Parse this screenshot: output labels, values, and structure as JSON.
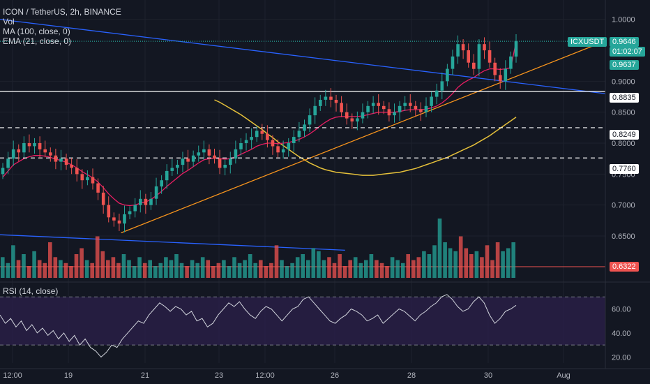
{
  "legend": {
    "symbol": "ICON / TetherUS, 2h, BINANCE",
    "vol": "Vol",
    "ma": "MA (100, close, 0)",
    "ema": "EMA (21, close, 0)",
    "rsi": "RSI (14, close)"
  },
  "tags": {
    "symbol": "ICXUSDT",
    "price": "0.9646",
    "countdown": "01:02:07",
    "ema_value": "0.9637",
    "level_top": "0.8835",
    "level_mid": "0.8249",
    "level_low": "0.7760",
    "volume_level": "0.6322"
  },
  "colors": {
    "background": "#131722",
    "up": "#26a69a",
    "down": "#ef5350",
    "ma": "#e5c03a",
    "ema": "#e91e63",
    "trend_support": "#f7941d",
    "trend_resistance": "#2962ff",
    "rsi_line": "#d1d4dc",
    "rsi_band": "#2a1f48",
    "price_tag": "#26a69a",
    "ema_tag": "#26a69a",
    "volume_tag": "#ef5350"
  },
  "chart_data": {
    "type": "candlestick",
    "price_axis": {
      "ticks": [
        "1.0000",
        "0.9000",
        "0.8500",
        "0.8000",
        "0.7500",
        "0.7000",
        "0.6500"
      ],
      "range": [
        0.58,
        1.02
      ]
    },
    "time_axis": {
      "ticks": [
        "12:00",
        "19",
        "21",
        "23",
        "12:00",
        "26",
        "28",
        "30",
        "Aug"
      ]
    },
    "rsi_axis": {
      "ticks": [
        "60.00",
        "40.00",
        "20.00"
      ],
      "range": [
        15,
        80
      ],
      "upper_band": 70,
      "lower_band": 30
    },
    "horizontal_levels": [
      {
        "value": 0.8835,
        "style": "solid"
      },
      {
        "value": 0.8249,
        "style": "dashed"
      },
      {
        "value": 0.776,
        "style": "dashed"
      },
      {
        "value": 0.9646,
        "style": "dotted"
      }
    ],
    "trendlines": [
      {
        "name": "support",
        "from": [
          0.2,
          0.655
        ],
        "to": [
          1.0,
          0.965
        ]
      },
      {
        "name": "resistance",
        "from": [
          0.0,
          1.0
        ],
        "to": [
          1.0,
          0.88
        ]
      },
      {
        "name": "resistance-2",
        "from": [
          0.0,
          0.652
        ],
        "to": [
          0.57,
          0.627
        ]
      }
    ],
    "closes": [
      0.76,
      0.775,
      0.79,
      0.785,
      0.8,
      0.795,
      0.8,
      0.79,
      0.785,
      0.78,
      0.77,
      0.775,
      0.765,
      0.76,
      0.75,
      0.74,
      0.745,
      0.735,
      0.72,
      0.7,
      0.68,
      0.675,
      0.67,
      0.685,
      0.69,
      0.7,
      0.71,
      0.7,
      0.71,
      0.73,
      0.74,
      0.755,
      0.76,
      0.765,
      0.775,
      0.77,
      0.78,
      0.785,
      0.79,
      0.78,
      0.775,
      0.76,
      0.765,
      0.775,
      0.79,
      0.8,
      0.805,
      0.81,
      0.82,
      0.815,
      0.805,
      0.795,
      0.785,
      0.79,
      0.8,
      0.81,
      0.82,
      0.83,
      0.845,
      0.86,
      0.87,
      0.875,
      0.87,
      0.865,
      0.85,
      0.84,
      0.835,
      0.84,
      0.85,
      0.86,
      0.865,
      0.86,
      0.855,
      0.845,
      0.85,
      0.86,
      0.865,
      0.86,
      0.855,
      0.85,
      0.86,
      0.875,
      0.885,
      0.9,
      0.92,
      0.94,
      0.96,
      0.95,
      0.93,
      0.92,
      0.96,
      0.95,
      0.93,
      0.91,
      0.9,
      0.92,
      0.94,
      0.965
    ],
    "ema21": [
      0.745,
      0.755,
      0.765,
      0.77,
      0.775,
      0.778,
      0.78,
      0.78,
      0.779,
      0.777,
      0.774,
      0.772,
      0.769,
      0.765,
      0.76,
      0.754,
      0.749,
      0.744,
      0.737,
      0.728,
      0.718,
      0.71,
      0.703,
      0.7,
      0.699,
      0.7,
      0.703,
      0.705,
      0.709,
      0.715,
      0.722,
      0.73,
      0.737,
      0.744,
      0.751,
      0.756,
      0.762,
      0.768,
      0.773,
      0.775,
      0.776,
      0.775,
      0.774,
      0.775,
      0.778,
      0.782,
      0.786,
      0.79,
      0.795,
      0.798,
      0.8,
      0.8,
      0.799,
      0.8,
      0.801,
      0.803,
      0.806,
      0.81,
      0.815,
      0.821,
      0.828,
      0.834,
      0.839,
      0.842,
      0.843,
      0.843,
      0.843,
      0.843,
      0.844,
      0.846,
      0.848,
      0.85,
      0.85,
      0.85,
      0.85,
      0.851,
      0.853,
      0.854,
      0.854,
      0.854,
      0.855,
      0.857,
      0.86,
      0.865,
      0.872,
      0.88,
      0.89,
      0.897,
      0.902,
      0.906,
      0.912,
      0.917,
      0.92,
      0.92,
      0.919,
      0.92,
      0.922,
      0.9637
    ],
    "ma100": [
      0.87,
      0.866,
      0.861,
      0.856,
      0.851,
      0.846,
      0.84,
      0.834,
      0.828,
      0.822,
      0.815,
      0.809,
      0.802,
      0.796,
      0.79,
      0.784,
      0.778,
      0.773,
      0.768,
      0.764,
      0.76,
      0.757,
      0.755,
      0.753,
      0.752,
      0.751,
      0.75,
      0.749,
      0.748,
      0.748,
      0.748,
      0.749,
      0.75,
      0.751,
      0.752,
      0.753,
      0.755,
      0.757,
      0.759,
      0.762,
      0.765,
      0.768,
      0.771,
      0.774,
      0.777,
      0.781,
      0.785,
      0.789,
      0.793,
      0.797,
      0.802,
      0.807,
      0.812,
      0.818,
      0.824,
      0.83,
      0.836,
      0.842
    ],
    "volumes": [
      0.35,
      0.25,
      0.55,
      0.3,
      0.4,
      0.2,
      0.45,
      0.3,
      0.25,
      0.6,
      0.35,
      0.3,
      0.25,
      0.2,
      0.4,
      0.5,
      0.3,
      0.25,
      0.7,
      0.45,
      0.3,
      0.35,
      0.25,
      0.4,
      0.3,
      0.2,
      0.35,
      0.25,
      0.3,
      0.2,
      0.25,
      0.35,
      0.3,
      0.4,
      0.25,
      0.2,
      0.3,
      0.25,
      0.35,
      0.3,
      0.2,
      0.25,
      0.3,
      0.2,
      0.35,
      0.25,
      0.3,
      0.4,
      0.25,
      0.3,
      0.2,
      0.25,
      0.55,
      0.3,
      0.2,
      0.25,
      0.35,
      0.4,
      0.3,
      0.5,
      0.45,
      0.3,
      0.35,
      0.25,
      0.4,
      0.2,
      0.3,
      0.35,
      0.25,
      0.3,
      0.4,
      0.3,
      0.25,
      0.2,
      0.35,
      0.3,
      0.25,
      0.4,
      0.3,
      0.35,
      0.45,
      0.4,
      0.55,
      1.0,
      0.6,
      0.5,
      0.45,
      0.7,
      0.5,
      0.4,
      0.45,
      0.35,
      0.55,
      0.3,
      0.6,
      0.45,
      0.5,
      0.6
    ],
    "rsi": [
      55,
      48,
      52,
      45,
      50,
      42,
      47,
      40,
      44,
      38,
      42,
      35,
      40,
      33,
      38,
      30,
      35,
      28,
      25,
      20,
      24,
      30,
      28,
      35,
      40,
      45,
      50,
      48,
      55,
      60,
      65,
      62,
      58,
      62,
      60,
      55,
      58,
      50,
      52,
      45,
      48,
      55,
      60,
      65,
      62,
      66,
      60,
      55,
      52,
      58,
      62,
      60,
      55,
      50,
      55,
      60,
      62,
      68,
      70,
      65,
      60,
      55,
      50,
      48,
      52,
      55,
      60,
      58,
      55,
      50,
      52,
      55,
      48,
      52,
      56,
      60,
      58,
      54,
      50,
      55,
      58,
      62,
      65,
      70,
      72,
      68,
      62,
      58,
      60,
      66,
      70,
      65,
      55,
      48,
      52,
      58,
      60,
      63
    ]
  }
}
